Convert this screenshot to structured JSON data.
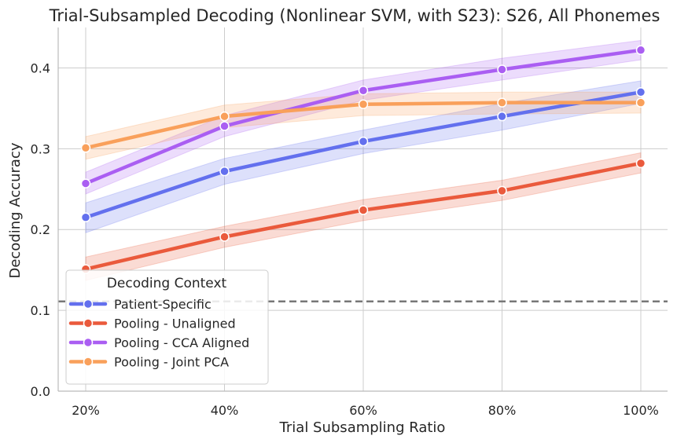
{
  "chart_data": {
    "type": "line",
    "title": "Trial-Subsampled Decoding (Nonlinear SVM, with S23): S26, All Phonemes",
    "xlabel": "Trial Subsampling Ratio",
    "ylabel": "Decoding Accuracy",
    "categories": [
      "20%",
      "40%",
      "60%",
      "80%",
      "100%"
    ],
    "x": [
      0.2,
      0.4,
      0.6,
      0.8,
      1.0
    ],
    "ylim": [
      0.0,
      0.45
    ],
    "yticks": [
      0.0,
      0.1,
      0.2,
      0.3,
      0.4
    ],
    "ytick_labels": [
      "0.0",
      "0.1",
      "0.2",
      "0.3",
      "0.4"
    ],
    "grid": true,
    "legend": {
      "title": "Decoding Context",
      "placement": "lower-left"
    },
    "chance_level": 0.111,
    "series": [
      {
        "name": "Patient-Specific",
        "color": "#6370ee",
        "values": [
          0.215,
          0.272,
          0.309,
          0.34,
          0.37
        ],
        "ci_low": [
          0.196,
          0.256,
          0.294,
          0.323,
          0.356
        ],
        "ci_high": [
          0.233,
          0.288,
          0.323,
          0.356,
          0.384
        ]
      },
      {
        "name": "Pooling - Unaligned",
        "color": "#ea5a3c",
        "values": [
          0.151,
          0.191,
          0.224,
          0.248,
          0.282
        ],
        "ci_low": [
          0.137,
          0.178,
          0.211,
          0.236,
          0.27
        ],
        "ci_high": [
          0.166,
          0.204,
          0.237,
          0.261,
          0.295
        ]
      },
      {
        "name": "Pooling - CCA Aligned",
        "color": "#aa5ef2",
        "values": [
          0.257,
          0.328,
          0.372,
          0.398,
          0.422
        ],
        "ci_low": [
          0.244,
          0.315,
          0.36,
          0.385,
          0.41
        ],
        "ci_high": [
          0.271,
          0.341,
          0.385,
          0.412,
          0.434
        ]
      },
      {
        "name": "Pooling - Joint PCA",
        "color": "#f9a05b",
        "values": [
          0.301,
          0.34,
          0.355,
          0.357,
          0.357
        ],
        "ci_low": [
          0.287,
          0.326,
          0.341,
          0.343,
          0.344
        ],
        "ci_high": [
          0.315,
          0.354,
          0.368,
          0.37,
          0.37
        ]
      }
    ]
  }
}
